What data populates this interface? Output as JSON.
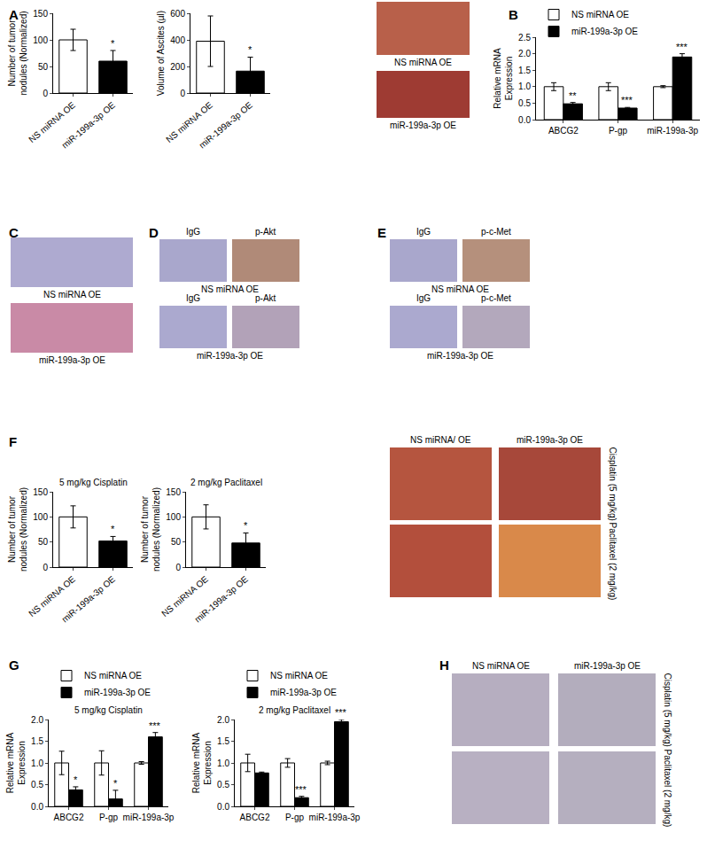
{
  "chart_data": [
    {
      "type": "bar",
      "y_label": "Number of tumor nodules (Normalized)",
      "categories": [
        "NS miRNA OE",
        "miR-199a-3p OE"
      ],
      "values": [
        100,
        60
      ],
      "errors": [
        20,
        20
      ],
      "colors": [
        "#ffffff",
        "#000000"
      ],
      "annotations": [
        null,
        "*"
      ],
      "ylim": [
        0,
        150
      ],
      "yticks": [
        0,
        50,
        100,
        150
      ]
    },
    {
      "type": "bar",
      "y_label": "Volume of Ascites (µl)",
      "categories": [
        "NS miRNA OE",
        "miR-199a-3p OE"
      ],
      "values": [
        390,
        165
      ],
      "errors": [
        190,
        105
      ],
      "colors": [
        "#ffffff",
        "#000000"
      ],
      "annotations": [
        null,
        "*"
      ],
      "ylim": [
        0,
        600
      ],
      "yticks": [
        0,
        200,
        400,
        600
      ]
    },
    {
      "type": "bar",
      "y_label": "Relative mRNA Expression",
      "categories": [
        "ABCG2",
        "P-gp",
        "miR-199a-3p"
      ],
      "series": [
        {
          "name": "NS miRNA OE",
          "color": "#ffffff",
          "values": [
            1.0,
            1.0,
            1.0
          ],
          "errors": [
            0.12,
            0.12,
            0.03
          ]
        },
        {
          "name": "miR-199a-3p OE",
          "color": "#000000",
          "values": [
            0.48,
            0.35,
            1.9
          ],
          "errors": [
            0.04,
            0.02,
            0.1
          ],
          "annotations": [
            "**",
            "***",
            "***"
          ]
        }
      ],
      "legend": "top left",
      "ylim": [
        0,
        2.5
      ],
      "yticks": [
        {
          "value": 0,
          "label": "0.0"
        },
        0.5,
        {
          "value": 1,
          "label": "1.0"
        },
        1.5,
        {
          "value": 2,
          "label": "2.0"
        },
        2.5
      ]
    },
    {
      "type": "bar",
      "title": "5 mg/kg Cisplatin",
      "y_label": "Number of tumor nodules (Normalized)",
      "categories": [
        "NS miRNA OE",
        "miR-199a-3p OE"
      ],
      "values": [
        100,
        52
      ],
      "errors": [
        22,
        9
      ],
      "colors": [
        "#ffffff",
        "#000000"
      ],
      "annotations": [
        null,
        "*"
      ],
      "ylim": [
        0,
        150
      ],
      "yticks": [
        0,
        50,
        100,
        150
      ]
    },
    {
      "type": "bar",
      "title": "2 mg/kg Paclitaxel",
      "y_label": "Number of tumor nodules (Normalized)",
      "categories": [
        "NS miRNA OE",
        "miR-199a-3p OE"
      ],
      "values": [
        100,
        48
      ],
      "errors": [
        24,
        20
      ],
      "colors": [
        "#ffffff",
        "#000000"
      ],
      "annotations": [
        null,
        "*"
      ],
      "ylim": [
        0,
        150
      ],
      "yticks": [
        0,
        50,
        100,
        150
      ]
    },
    {
      "type": "bar",
      "title": "5 mg/kg Cisplatin",
      "y_label": "Relative mRNA Expression",
      "categories": [
        "ABCG2",
        "P-gp",
        "miR-199a-3p"
      ],
      "series": [
        {
          "name": "NS miRNA OE",
          "color": "#ffffff",
          "values": [
            1.0,
            1.0,
            1.0
          ],
          "errors": [
            0.27,
            0.28,
            0.03
          ]
        },
        {
          "name": "miR-199a-3p OE",
          "color": "#000000",
          "values": [
            0.38,
            0.17,
            1.6
          ],
          "errors": [
            0.07,
            0.2,
            0.1
          ],
          "annotations": [
            "*",
            "*",
            "***"
          ]
        }
      ],
      "legend": "top left",
      "ylim": [
        0,
        2.0
      ],
      "yticks": [
        {
          "value": 0,
          "label": "0.0"
        },
        0.5,
        {
          "value": 1,
          "label": "1.0"
        },
        1.5,
        {
          "value": 2,
          "label": "2.0"
        }
      ]
    },
    {
      "type": "bar",
      "title": "2 mg/kg Paclitaxel",
      "y_label": "Relative mRNA Expression",
      "categories": [
        "ABCG2",
        "P-gp",
        "miR-199a-3p"
      ],
      "series": [
        {
          "name": "NS miRNA OE",
          "color": "#ffffff",
          "values": [
            1.0,
            1.0,
            1.0
          ],
          "errors": [
            0.2,
            0.1,
            0.04
          ]
        },
        {
          "name": "miR-199a-3p OE",
          "color": "#000000",
          "values": [
            0.77,
            0.2,
            1.95
          ],
          "errors": [
            0.02,
            0.03,
            0.05
          ],
          "annotations": [
            null,
            "***",
            "***"
          ]
        }
      ],
      "legend": "top left",
      "ylim": [
        0,
        2.0
      ],
      "yticks": [
        {
          "value": 0,
          "label": "0.0"
        },
        0.5,
        {
          "value": 1,
          "label": "1.0"
        },
        1.5,
        {
          "value": 2,
          "label": "2.0"
        }
      ]
    }
  ],
  "panel_labels": [
    "A",
    "B",
    "C",
    "D",
    "E",
    "F",
    "G",
    "H"
  ],
  "images": [
    {
      "captions": [
        "NS miRNA OE",
        "miR-199a-3p OE"
      ]
    },
    {
      "captions": [
        "NS miRNA OE",
        "miR-199a-3p OE"
      ]
    },
    {
      "rows": [
        {
          "headers": [
            "IgG",
            "p-Akt"
          ],
          "caption": "NS miRNA OE"
        },
        {
          "headers": [
            "IgG",
            "p-Akt"
          ],
          "caption": "miR-199a-3p OE"
        }
      ]
    },
    {
      "rows": [
        {
          "headers": [
            "IgG",
            "p-c-Met"
          ],
          "caption": "NS miRNA OE"
        },
        {
          "headers": [
            "IgG",
            "p-c-Met"
          ],
          "caption": "miR-199a-3p OE"
        }
      ]
    },
    {
      "column_headers": [
        "NS miRNA/ OE",
        "miR-199a-3p OE"
      ],
      "row_labels": [
        "Cisplatin (5 mg/kg)",
        "Paclitaxel (2 mg/kg)"
      ]
    },
    {
      "column_headers": [
        "NS miRNA OE",
        "miR-199a-3p OE"
      ],
      "row_labels": [
        "Cisplatin (5 mg/kg)",
        "Paclitaxel (2 mg/kg)"
      ]
    }
  ]
}
